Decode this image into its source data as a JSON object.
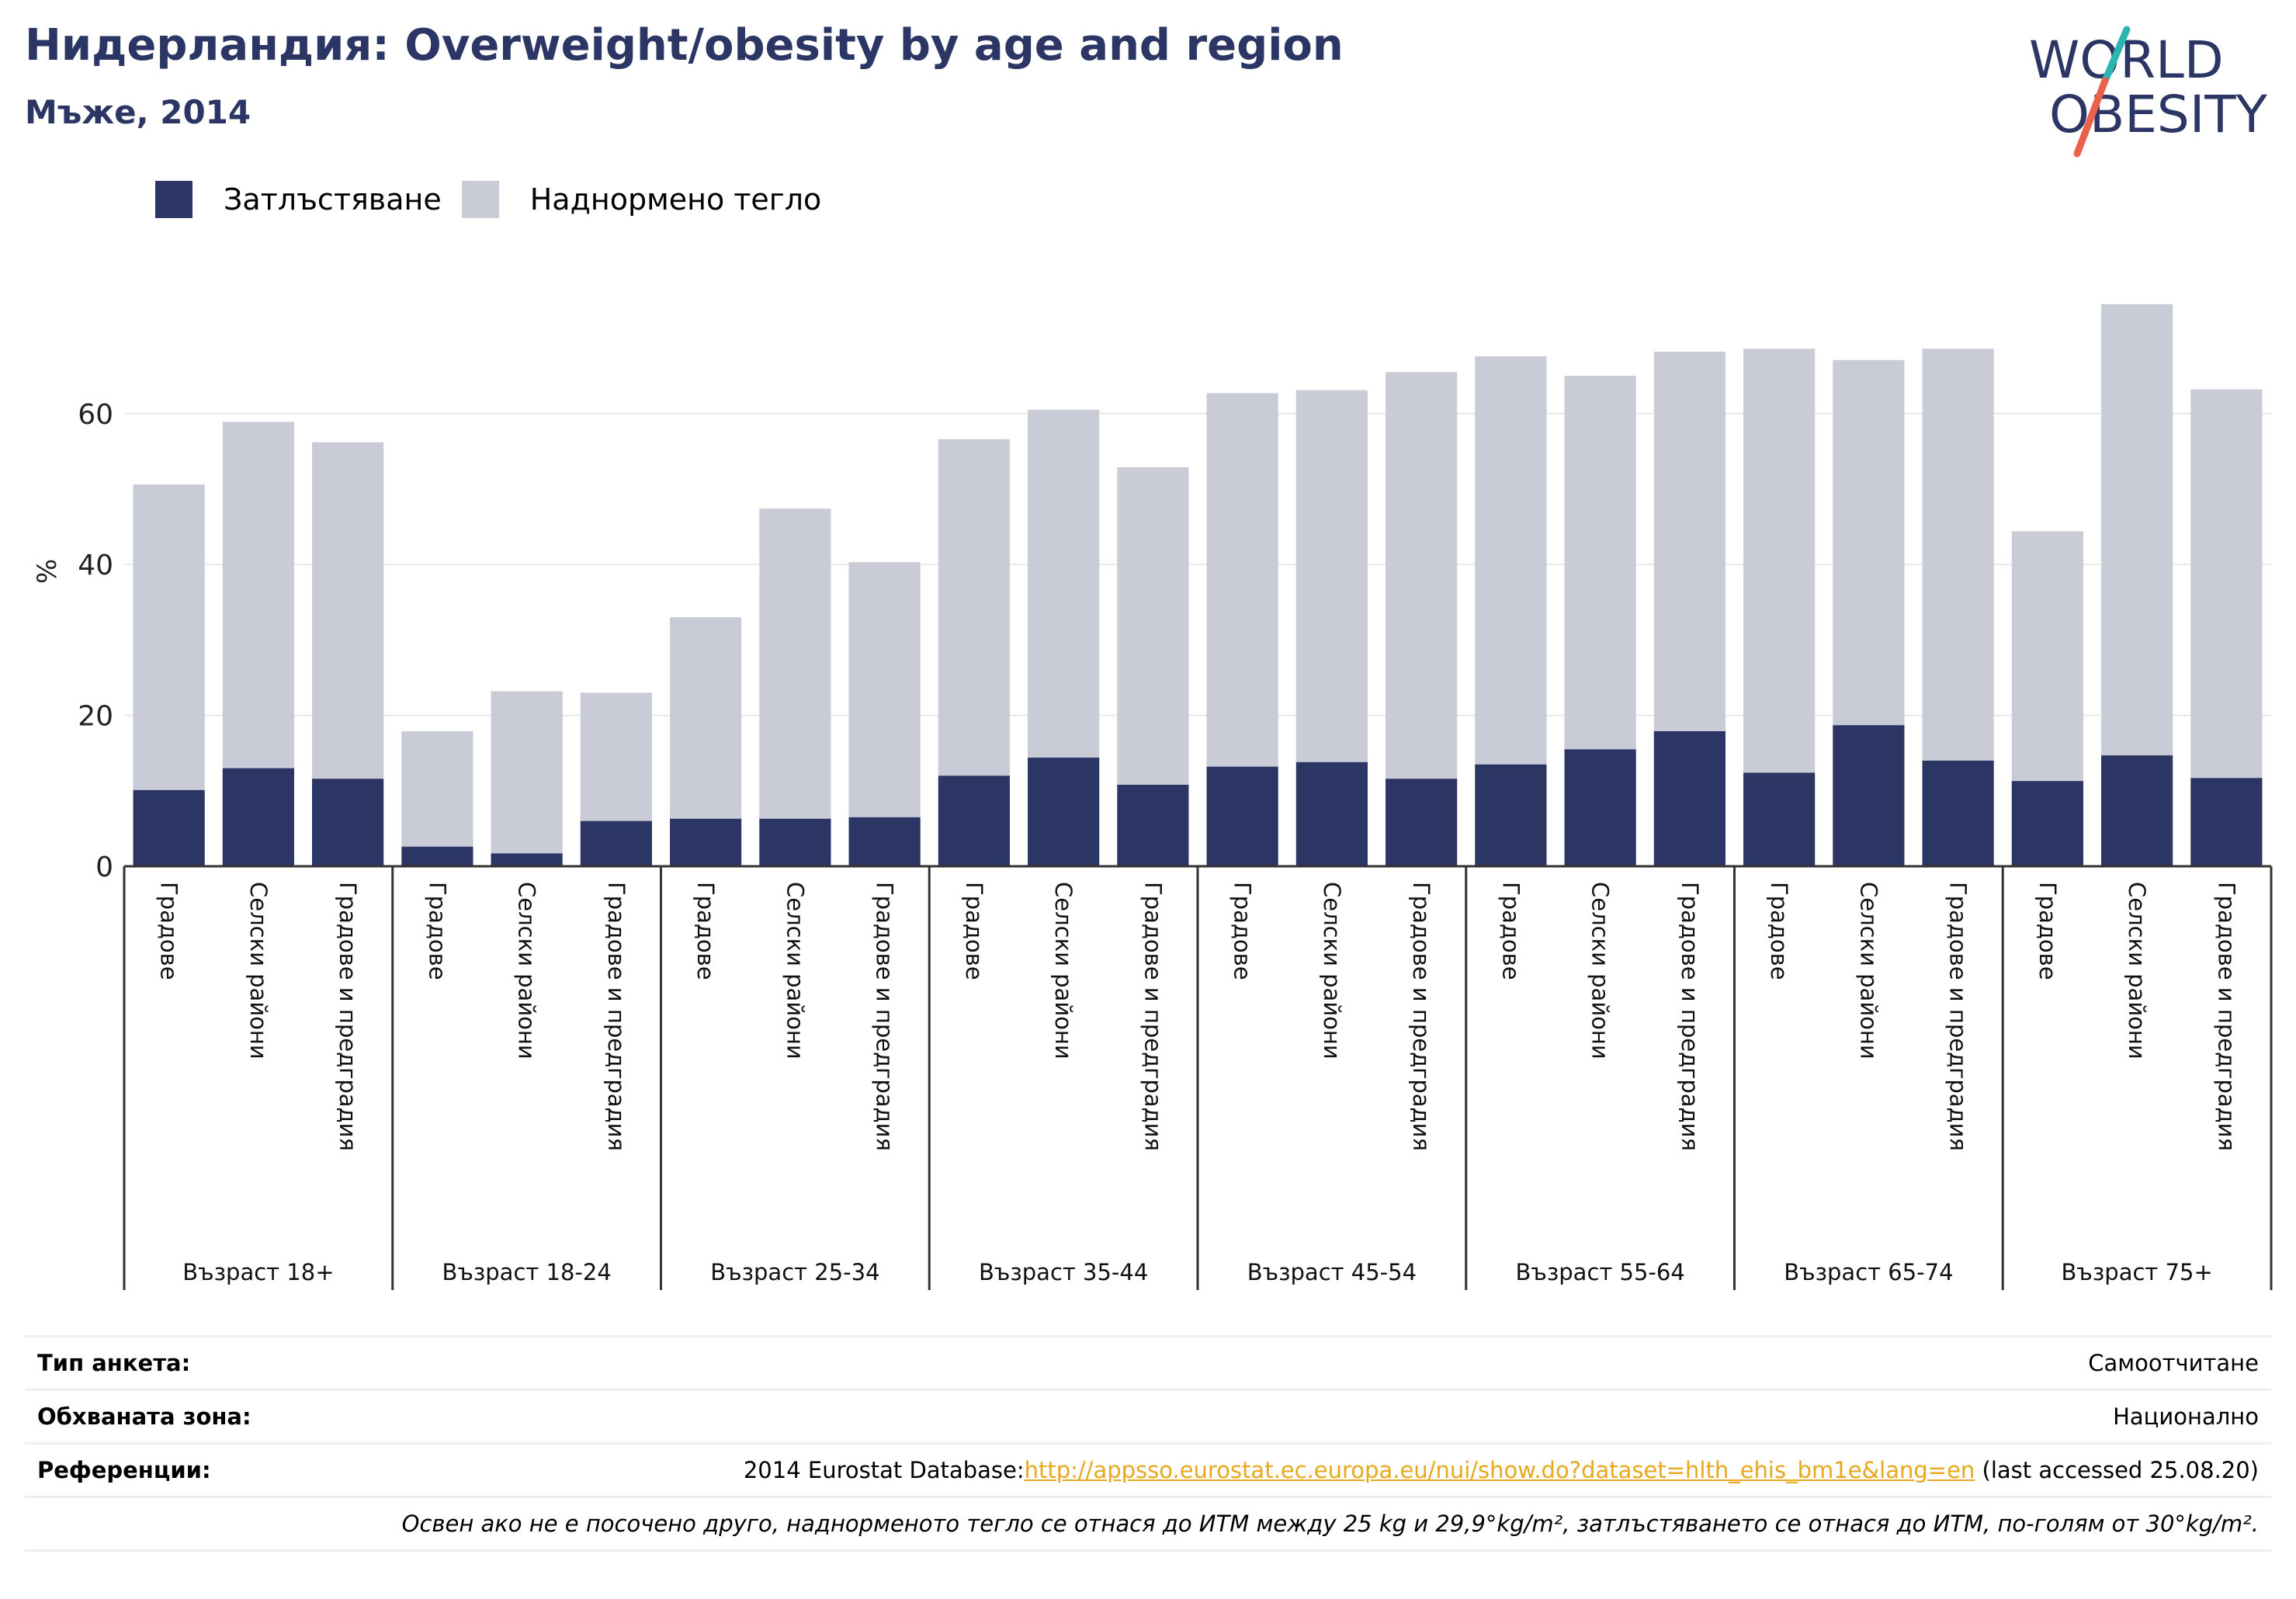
{
  "header": {
    "title": "Нидерландия: Overweight/obesity by age and region",
    "subtitle": "Мъже, 2014"
  },
  "logo": {
    "line1": "WORLD",
    "line2": "OBESITY",
    "colors": {
      "text": "#2b3664",
      "slash_top": "#2bb5b0",
      "slash_bottom": "#e8624c"
    }
  },
  "legend": {
    "items": [
      {
        "label": "Затлъстяване",
        "color": "#2b3664"
      },
      {
        "label": "Наднормено тегло",
        "color": "#c9cbd7"
      }
    ]
  },
  "chart_data": {
    "type": "bar",
    "stacked": true,
    "ylabel": "%",
    "ylim": [
      0,
      75
    ],
    "yticks": [
      0,
      20,
      40,
      60
    ],
    "grid": true,
    "legend_position": "top-left",
    "groups": [
      "Възраст 18+",
      "Възраст 18-24",
      "Възраст 25-34",
      "Възраст 35-44",
      "Възраст 45-54",
      "Възраст 55-64",
      "Възраст 65-74",
      "Възраст 75+"
    ],
    "subcategories": [
      "Градове",
      "Селски райони",
      "Градове и предградия"
    ],
    "series": [
      {
        "name": "Затлъстяване",
        "color": "#2b3664",
        "values": [
          10.1,
          13.0,
          11.6,
          2.6,
          1.7,
          6.0,
          6.3,
          6.3,
          6.5,
          12.0,
          14.4,
          10.8,
          13.2,
          13.8,
          11.6,
          13.5,
          15.5,
          17.9,
          12.4,
          18.7,
          14.0,
          11.3,
          14.7,
          11.7
        ]
      },
      {
        "name": "Наднормено тегло",
        "color": "#c9cbd7",
        "values": [
          40.5,
          45.9,
          44.6,
          15.3,
          21.5,
          17.0,
          26.7,
          41.1,
          33.8,
          44.6,
          46.1,
          42.1,
          49.5,
          49.3,
          53.9,
          54.1,
          49.5,
          50.3,
          56.2,
          48.4,
          54.6,
          33.1,
          59.8,
          51.5
        ]
      }
    ]
  },
  "info": {
    "survey_type_label": "Тип анкета:",
    "survey_type_value": "Самоотчитане",
    "coverage_label": "Обхваната зона:",
    "coverage_value": "Национално",
    "references_label": "Референции:",
    "references_prefix": "2014 Eurostat Database:",
    "references_link": "http://appsso.eurostat.ec.europa.eu/nui/show.do?dataset=hlth_ehis_bm1e&lang=en",
    "references_suffix": " (last accessed 25.08.20)",
    "note": "Освен ако не е посочено друго, наднорменото тегло се отнася до ИТМ между 25 kg и 29,9°kg/m², затлъстяването се отнася до ИТМ, по-голям от 30°kg/m²."
  }
}
